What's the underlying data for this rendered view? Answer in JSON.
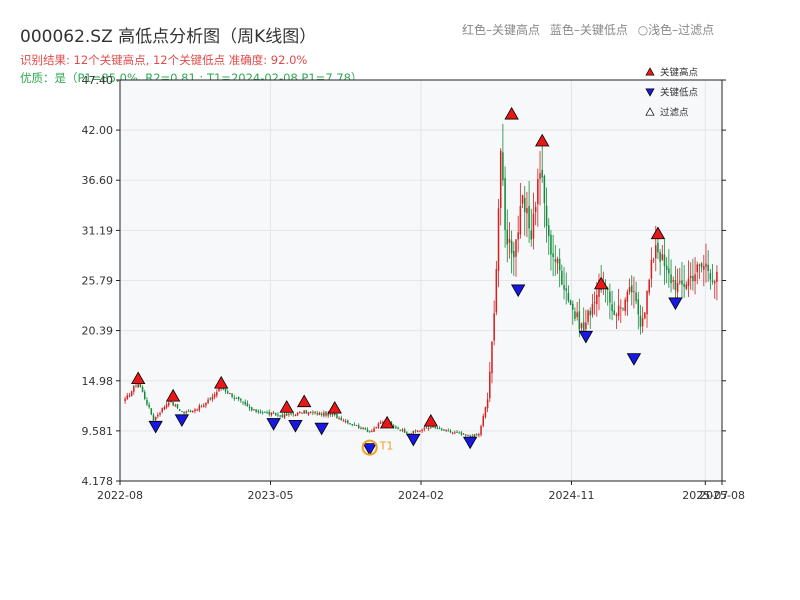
{
  "header": {
    "title": "000062.SZ 高低点分析图（周K线图）",
    "color_note": [
      "红色–关键高点",
      "蓝色–关键低点",
      "○浅色–过滤点"
    ],
    "result_line": "识别结果: 12个关键高点, 12个关键低点  准确度: 92.0%",
    "quality_line": "优质：是（P1=85.0%, R2=0.81 ; T1=2024-02-08 P1=7.78）"
  },
  "colors": {
    "up": "#d42020",
    "down": "#13893a",
    "high_marker": "#e81818",
    "low_marker": "#1818e0",
    "t1_marker": "#f0a020",
    "plot_bg": "#f7f8fa",
    "grid": "#e3e5ea"
  },
  "chart_data": {
    "type": "candlestick",
    "title": "000062.SZ 高低点分析图（周K线图）",
    "y_ticks": [
      "4.178",
      "9.581",
      "14.98",
      "20.39",
      "25.79",
      "31.19",
      "36.60",
      "42.00",
      "47.40"
    ],
    "ylim": [
      4.178,
      47.4
    ],
    "x_ticks": [
      {
        "date": "2022-08",
        "label": "2022-08"
      },
      {
        "date": "2023-05",
        "label": "2023-05"
      },
      {
        "date": "2024-02",
        "label": "2024-02"
      },
      {
        "date": "2024-11",
        "label": "2024-11"
      },
      {
        "date": "2025-07",
        "label": "2025-07"
      },
      {
        "date": "2025-08",
        "label": "2025-08"
      }
    ],
    "xlim": [
      "2022-08",
      "2025-08"
    ],
    "grid": true,
    "legend": {
      "position": "top-right",
      "entries": [
        {
          "name": "关键高点",
          "marker": "up-triangle-red"
        },
        {
          "name": "关键低点",
          "marker": "down-triangle-blue"
        },
        {
          "name": "过滤点",
          "marker": "up-triangle-white"
        }
      ]
    },
    "anchors": [
      [
        0,
        12.9
      ],
      [
        6,
        14.9
      ],
      [
        13,
        10.8
      ],
      [
        20,
        12.8
      ],
      [
        27,
        11.5
      ],
      [
        36,
        12.3
      ],
      [
        44,
        14.3
      ],
      [
        58,
        11.8
      ],
      [
        72,
        11.2
      ],
      [
        82,
        11.6
      ],
      [
        95,
        11.3
      ],
      [
        112,
        9.5
      ],
      [
        118,
        10.6
      ],
      [
        130,
        9.3
      ],
      [
        140,
        10.0
      ],
      [
        150,
        9.4
      ],
      [
        158,
        9.0
      ],
      [
        162,
        9.2
      ],
      [
        166,
        13.0
      ],
      [
        169,
        22.0
      ],
      [
        170,
        28.0
      ],
      [
        172,
        40.0
      ],
      [
        174,
        31.0
      ],
      [
        178,
        29.0
      ],
      [
        182,
        34.0
      ],
      [
        186,
        31.0
      ],
      [
        190,
        38.0
      ],
      [
        194,
        30.0
      ],
      [
        200,
        26.2
      ],
      [
        206,
        22.0
      ],
      [
        210,
        20.5
      ],
      [
        214,
        23.5
      ],
      [
        218,
        25.5
      ],
      [
        224,
        22.4
      ],
      [
        228,
        23.2
      ],
      [
        232,
        24.8
      ],
      [
        236,
        21.5
      ],
      [
        238,
        23.0
      ],
      [
        243,
        30.0
      ],
      [
        248,
        26.5
      ],
      [
        254,
        25.0
      ],
      [
        258,
        26.0
      ],
      [
        262,
        27.0
      ],
      [
        266,
        27.5
      ],
      [
        270,
        26.0
      ]
    ],
    "key_highs": [
      {
        "index": 6,
        "price": 14.98
      },
      {
        "index": 22,
        "price": 13.1
      },
      {
        "index": 44,
        "price": 14.5
      },
      {
        "index": 74,
        "price": 11.9
      },
      {
        "index": 82,
        "price": 12.5
      },
      {
        "index": 96,
        "price": 11.8
      },
      {
        "index": 120,
        "price": 10.2
      },
      {
        "index": 140,
        "price": 10.4
      },
      {
        "index": 177,
        "price": 43.5
      },
      {
        "index": 191,
        "price": 40.6
      },
      {
        "index": 218,
        "price": 25.2
      },
      {
        "index": 244,
        "price": 30.6
      }
    ],
    "key_lows": [
      {
        "index": 14,
        "price": 10.3
      },
      {
        "index": 26,
        "price": 11.0
      },
      {
        "index": 68,
        "price": 10.6
      },
      {
        "index": 78,
        "price": 10.4
      },
      {
        "index": 90,
        "price": 10.1
      },
      {
        "index": 112,
        "price": 7.9
      },
      {
        "index": 132,
        "price": 8.9
      },
      {
        "index": 158,
        "price": 8.6
      },
      {
        "index": 180,
        "price": 25.0
      },
      {
        "index": 211,
        "price": 20.0
      },
      {
        "index": 233,
        "price": 17.6
      },
      {
        "index": 252,
        "price": 23.6
      }
    ],
    "t1": {
      "index": 112,
      "price": 7.78,
      "label": "T1"
    },
    "n_bars": 272
  }
}
